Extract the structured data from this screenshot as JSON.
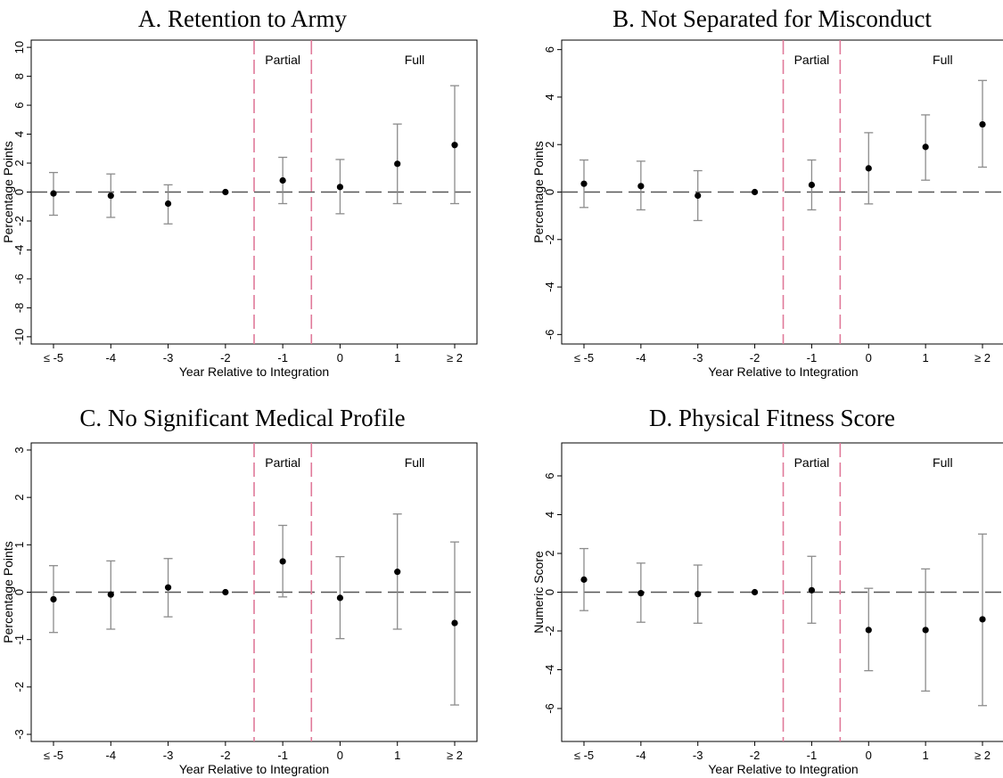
{
  "figure": {
    "x_tick_labels": [
      "≤ -5",
      "-4",
      "-3",
      "-2",
      "-1",
      "0",
      "1",
      "≥ 2"
    ],
    "region_labels": {
      "partial": "Partial",
      "full": "Full"
    },
    "colors": {
      "marker": "#000000",
      "ci": "#8c8c8c",
      "zero_line": "#555555",
      "divider": "#e07a9a"
    }
  },
  "chart_data": [
    {
      "type": "scatter",
      "title": "A. Retention to Army",
      "xlabel": "Year Relative to Integration",
      "ylabel": "Percentage Points",
      "ylim": [
        -10.5,
        10.5
      ],
      "yticks": [
        -10,
        -8,
        -6,
        -4,
        -2,
        0,
        2,
        4,
        6,
        8,
        10
      ],
      "categories": [
        "≤ -5",
        "-4",
        "-3",
        "-2",
        "-1",
        "0",
        "1",
        "≥ 2"
      ],
      "values": [
        -0.1,
        -0.25,
        -0.8,
        0.0,
        0.8,
        0.35,
        1.95,
        3.25
      ],
      "ci_low": [
        -1.6,
        -1.75,
        -2.2,
        0.0,
        -0.8,
        -1.5,
        -0.8,
        -0.8
      ],
      "ci_high": [
        1.35,
        1.25,
        0.5,
        0.0,
        2.4,
        2.25,
        4.7,
        7.35
      ],
      "dividers": [
        -1.5,
        -0.5
      ],
      "grid": false
    },
    {
      "type": "scatter",
      "title": "B. Not Separated for Misconduct",
      "xlabel": "Year Relative to Integration",
      "ylabel": "Percentage Points",
      "ylim": [
        -6.4,
        6.4
      ],
      "yticks": [
        -6,
        -4,
        -2,
        0,
        2,
        4,
        6
      ],
      "categories": [
        "≤ -5",
        "-4",
        "-3",
        "-2",
        "-1",
        "0",
        "1",
        "≥ 2"
      ],
      "values": [
        0.35,
        0.25,
        -0.15,
        0.0,
        0.3,
        1.0,
        1.9,
        2.85
      ],
      "ci_low": [
        -0.65,
        -0.75,
        -1.2,
        0.0,
        -0.75,
        -0.5,
        0.5,
        1.05
      ],
      "ci_high": [
        1.35,
        1.3,
        0.9,
        0.0,
        1.35,
        2.5,
        3.25,
        4.7
      ],
      "dividers": [
        -1.5,
        -0.5
      ],
      "grid": false
    },
    {
      "type": "scatter",
      "title": "C. No Significant Medical Profile",
      "xlabel": "Year Relative to Integration",
      "ylabel": "Percentage Points",
      "ylim": [
        -3.15,
        3.15
      ],
      "yticks": [
        -3,
        -2,
        -1,
        0,
        1,
        2,
        3
      ],
      "categories": [
        "≤ -5",
        "-4",
        "-3",
        "-2",
        "-1",
        "0",
        "1",
        "≥ 2"
      ],
      "values": [
        -0.15,
        -0.05,
        0.1,
        0.0,
        0.65,
        -0.12,
        0.43,
        -0.65
      ],
      "ci_low": [
        -0.85,
        -0.78,
        -0.52,
        0.0,
        -0.1,
        -0.98,
        -0.78,
        -2.38
      ],
      "ci_high": [
        0.56,
        0.66,
        0.71,
        0.0,
        1.41,
        0.75,
        1.65,
        1.06
      ],
      "dividers": [
        -1.5,
        -0.5
      ],
      "grid": false
    },
    {
      "type": "scatter",
      "title": "D. Physical Fitness Score",
      "xlabel": "Year Relative to Integration",
      "ylabel": "Numeric Score",
      "ylim": [
        -7.7,
        7.7
      ],
      "yticks": [
        -6,
        -4,
        -2,
        0,
        2,
        4,
        6
      ],
      "categories": [
        "≤ -5",
        "-4",
        "-3",
        "-2",
        "-1",
        "0",
        "1",
        "≥ 2"
      ],
      "values": [
        0.65,
        -0.05,
        -0.1,
        0.0,
        0.1,
        -1.95,
        -1.95,
        -1.4
      ],
      "ci_low": [
        -0.95,
        -1.55,
        -1.6,
        0.0,
        -1.6,
        -4.05,
        -5.1,
        -5.85
      ],
      "ci_high": [
        2.25,
        1.5,
        1.4,
        0.0,
        1.85,
        0.2,
        1.2,
        3.0
      ],
      "dividers": [
        -1.5,
        -0.5
      ],
      "grid": false
    }
  ]
}
